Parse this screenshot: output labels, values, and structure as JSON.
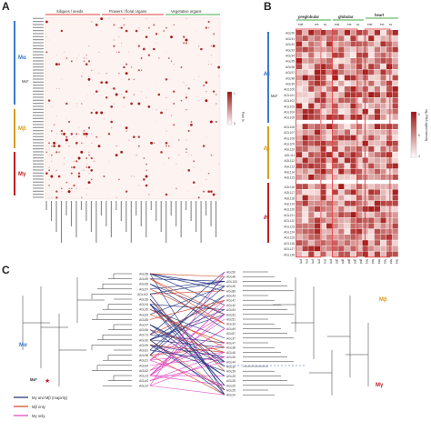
{
  "panels": {
    "a": "A",
    "b": "B",
    "c": "C"
  },
  "panel_a": {
    "categories": [
      "Siliques / seeds",
      "Flowers / floral organs",
      "Vegetative organs"
    ],
    "category_colors": [
      "#e0403a",
      "#e0403a",
      "#4aa84a"
    ],
    "groups": [
      {
        "label": "Mα",
        "color": "#3a7ad0"
      },
      {
        "label": "Mα*",
        "color": "#3a7ad0"
      },
      {
        "label": "Mβ",
        "color": "#d8a020"
      },
      {
        "label": "Mγ",
        "color": "#c02020"
      }
    ],
    "legend_title": "Pixel %",
    "legend_max": "1",
    "legend_min": "0",
    "row_count": 60,
    "col_count": 70
  },
  "panel_b": {
    "stages": [
      "preglobular",
      "globular",
      "heart"
    ],
    "stage_color": "#4aa84a",
    "sub_labels": [
      "end",
      "em",
      "sc",
      "end",
      "em",
      "sc",
      "end",
      "em",
      "sc"
    ],
    "genes": [
      "AGL90",
      "AGL91",
      "AGL92",
      "AGL93",
      "AGL94",
      "AGL95",
      "AGL96",
      "AGL97",
      "AGL98",
      "AGL99",
      "AGL100",
      "AGL101",
      "AGL102",
      "AGL103",
      "AGL104",
      "AGL105",
      "AGL106",
      "AGL107",
      "AGL108",
      "AGL109",
      "AGL110",
      "AGL111",
      "AGL112",
      "AGL113",
      "AGL114",
      "AGL115",
      "AGL116",
      "AGL117",
      "AGL118",
      "AGL119",
      "AGL120",
      "AGL121",
      "AGL122",
      "AGL123",
      "AGL124",
      "AGL125",
      "AGL126",
      "AGL127",
      "AGL128"
    ],
    "columns": [
      "preglob_em_end",
      "preglob_cz_end",
      "preglob_pen_end",
      "preglob_micro_end",
      "preglob_emb",
      "preglob_seed_coat",
      "glob_micro_end",
      "glob_pen_end",
      "glob_cz_end",
      "glob_emb",
      "glob_seed_coat",
      "heart_pen_end",
      "heart_cz_end",
      "heart_micro_end",
      "heart_emb",
      "heart_seed_coat",
      "heart_chal_coat"
    ],
    "legend_title": "log₂ RMA signal intensity",
    "legend_ticks": [
      "8",
      "6",
      "4"
    ],
    "groups": [
      {
        "label": "Mα",
        "color": "#3a7ad0"
      },
      {
        "label": "Mα*",
        "color": "#3a7ad0"
      },
      {
        "label": "Mβ",
        "color": "#d8a020"
      },
      {
        "label": "Mγ",
        "color": "#c02020"
      }
    ]
  },
  "panel_c": {
    "left_genes": [
      "AGL58",
      "AGL59",
      "AGL65",
      "AGL57",
      "AGL102",
      "AGL36",
      "AGL34",
      "AGL35",
      "AGL83",
      "AGL85",
      "AGL97",
      "AGL96",
      "AGL73",
      "AGL90",
      "AGL99",
      "AGL81",
      "AGL98",
      "AGL61",
      "AGL64",
      "AGL62",
      "AGL23",
      "AGL40",
      "AGL23"
    ],
    "right_genes": [
      "AGL50",
      "AGL48",
      "AGL103",
      "AGL49",
      "AGL86",
      "AGL43",
      "AGL41",
      "AGL42",
      "AGL53",
      "AGL52",
      "AGL51",
      "AGL33",
      "AGL69",
      "AGL87",
      "AGL37",
      "AGL47",
      "AGL38",
      "AGL46",
      "AGL45",
      "AGL44",
      "AGL32",
      "AGL39",
      "AGL29",
      "AGL28",
      "AGL26",
      "AGL25",
      "AGL24"
    ],
    "left_group": "Mα",
    "left_sub_group": "Mα*",
    "right_group_top": "Mβ",
    "right_group_bottom": "Mγ",
    "legend": [
      {
        "label": "Mγ and Mβ (majority)",
        "color": "#1a2a7a"
      },
      {
        "label": "Mβ only",
        "color": "#d04020"
      },
      {
        "label": "Mγ only",
        "color": "#e040c0"
      }
    ],
    "bootstrap_labels": [
      "100",
      "100",
      "100",
      "100",
      "100",
      "100",
      "100",
      "100",
      "100",
      "100"
    ]
  }
}
